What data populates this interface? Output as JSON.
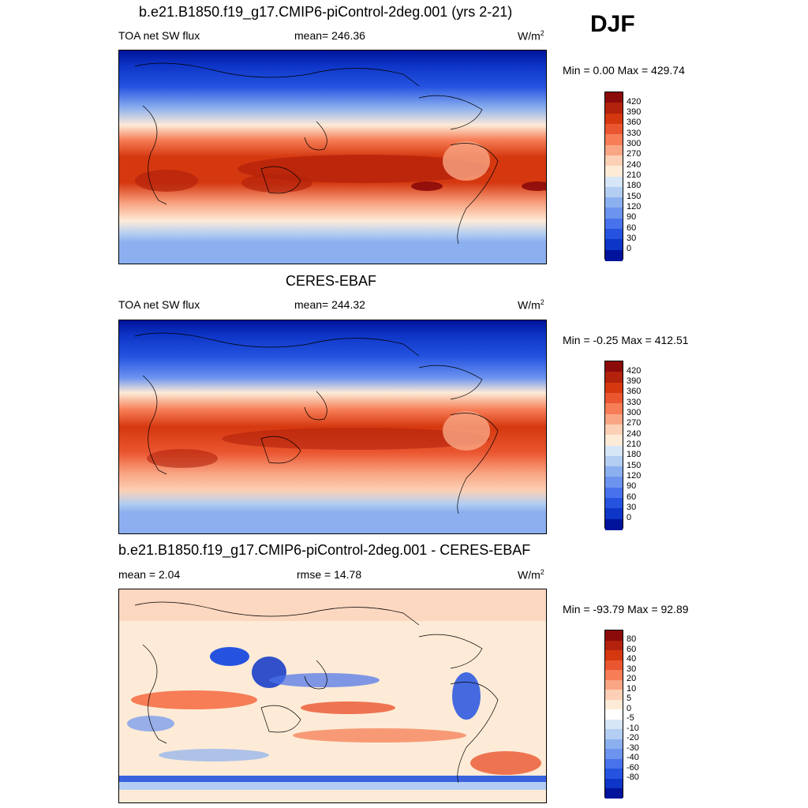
{
  "season": "DJF",
  "panels": [
    {
      "title": "b.e21.B1850.f19_g17.CMIP6-piControl-2deg.001 (yrs 2-21)",
      "left_label": "TOA net SW flux",
      "center_label": "mean= 246.36",
      "units": "W/m",
      "units_exp": "2",
      "minmax": "Min =   0.00 Max = 429.74",
      "colorbar": {
        "colors": [
          "#8b0a0a",
          "#b3220c",
          "#d5380f",
          "#ea5630",
          "#f67d56",
          "#f9a684",
          "#fcd0b6",
          "#fdebd7",
          "#d6e6f7",
          "#b3cef2",
          "#8cb0ef",
          "#6c94ef",
          "#4872eb",
          "#2553e0",
          "#0d35c7",
          "#00139a"
        ],
        "labels": [
          "420",
          "390",
          "360",
          "330",
          "300",
          "270",
          "240",
          "210",
          "180",
          "150",
          "120",
          "90",
          "60",
          "30",
          "0"
        ]
      }
    },
    {
      "title": "CERES-EBAF",
      "left_label": "TOA net SW flux",
      "center_label": "mean= 244.32",
      "units": "W/m",
      "units_exp": "2",
      "minmax": "Min =  -0.25 Max = 412.51",
      "colorbar": {
        "colors": [
          "#8b0a0a",
          "#b3220c",
          "#d5380f",
          "#ea5630",
          "#f67d56",
          "#f9a684",
          "#fcd0b6",
          "#fdebd7",
          "#d6e6f7",
          "#b3cef2",
          "#8cb0ef",
          "#6c94ef",
          "#4872eb",
          "#2553e0",
          "#0d35c7",
          "#00139a"
        ],
        "labels": [
          "420",
          "390",
          "360",
          "330",
          "300",
          "270",
          "240",
          "210",
          "180",
          "150",
          "120",
          "90",
          "60",
          "30",
          "0"
        ]
      }
    },
    {
      "title": "b.e21.B1850.f19_g17.CMIP6-piControl-2deg.001 - CERES-EBAF",
      "left_label": "mean =   2.04",
      "center_label": "rmse =  14.78",
      "units": "W/m",
      "units_exp": "2",
      "minmax": "Min = -93.79 Max =  92.89",
      "colorbar": {
        "colors": [
          "#8b0a0a",
          "#b3220c",
          "#d5380f",
          "#ea5630",
          "#f67d56",
          "#f9a684",
          "#fcd0b6",
          "#fdebd7",
          "#ffffff",
          "#d6e6f7",
          "#b3cef2",
          "#8cb0ef",
          "#6c94ef",
          "#4872eb",
          "#2553e0",
          "#0d35c7",
          "#00139a"
        ],
        "labels": [
          "80",
          "60",
          "40",
          "30",
          "20",
          "10",
          "5",
          "0",
          "-5",
          "-10",
          "-20",
          "-30",
          "-40",
          "-60",
          "-80"
        ]
      }
    }
  ]
}
